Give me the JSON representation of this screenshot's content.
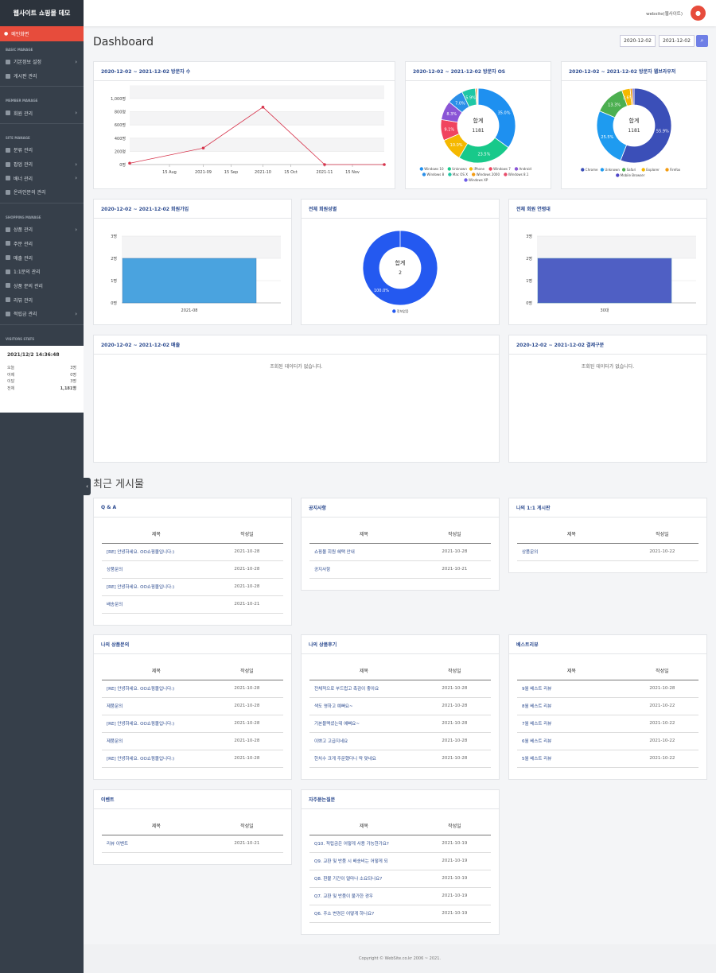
{
  "sidebar": {
    "title": "웹사이트 쇼핑몰 데모",
    "home": "메인화면",
    "sections": [
      {
        "name": "BASIC MANAGE",
        "items": [
          {
            "label": "기본정보 설정",
            "chevron": true
          },
          {
            "label": "게시판 관리",
            "chevron": false
          }
        ]
      },
      {
        "name": "MEMBER MANAGE",
        "items": [
          {
            "label": "회원 관리",
            "chevron": true
          }
        ]
      },
      {
        "name": "SITE MANAGE",
        "items": [
          {
            "label": "분류 관리",
            "chevron": false
          },
          {
            "label": "팝업 관리",
            "chevron": true
          },
          {
            "label": "배너 관리",
            "chevron": true
          },
          {
            "label": "온라인문의 관리",
            "chevron": false
          }
        ]
      },
      {
        "name": "SHOPPING MANAGE",
        "items": [
          {
            "label": "상품 관리",
            "chevron": true
          },
          {
            "label": "주문 관리",
            "chevron": false
          },
          {
            "label": "매출 관리",
            "chevron": false
          },
          {
            "label": "1:1문의 관리",
            "chevron": false
          },
          {
            "label": "상품 문의 관리",
            "chevron": false
          },
          {
            "label": "리뷰 관리",
            "chevron": false
          },
          {
            "label": "적립금 관리",
            "chevron": true
          }
        ]
      },
      {
        "name": "VISITORS STATS",
        "items": [
          {
            "label": "접속통계",
            "chevron": true
          }
        ]
      }
    ],
    "clock": "2021/12/2 14:36:48",
    "stats": [
      {
        "label": "오늘",
        "value": "3명"
      },
      {
        "label": "어제",
        "value": "0명"
      },
      {
        "label": "이달",
        "value": "3명"
      },
      {
        "label": "전체",
        "value": "1,181명"
      }
    ]
  },
  "topbar": {
    "user": "website(웹사이트)"
  },
  "dashboard": {
    "title": "Dashboard",
    "date_from": "2020-12-02",
    "date_to": "2021-12-02"
  },
  "cards": {
    "visitors": "2020-12-02 ~ 2021-12-02 방문자 수",
    "os": "2020-12-02 ~ 2021-12-02 방문자 OS",
    "browser": "2020-12-02 ~ 2021-12-02 방문자 웹브라우저",
    "signup": "2020-12-02 ~ 2021-12-02 회원가입",
    "gender": "전체 회원성별",
    "age": "전체 회원 연령대",
    "sales": "2020-12-02 ~ 2021-12-02 매출",
    "payment": "2020-12-02 ~ 2021-12-02 결제구분",
    "nodata": "조회된 데이터가 없습니다.",
    "total_label": "합계"
  },
  "chart_data": [
    {
      "type": "line",
      "title": "2020-12-02 ~ 2021-12-02 방문자 수",
      "x": [
        "2021-07-26",
        "2021-09-01",
        "2021-10-01",
        "2021-11-01",
        "2021-12-01"
      ],
      "y": [
        20,
        250,
        870,
        0,
        0
      ],
      "ticks_x": [
        "15 Aug",
        "2021-09",
        "15 Sep",
        "2021-10",
        "15 Oct",
        "2021-11",
        "15 Nov"
      ],
      "ticks_y": [
        "0명",
        "200명",
        "400명",
        "600명",
        "800명",
        "1,000명"
      ],
      "ylim": [
        0,
        1000
      ]
    },
    {
      "type": "pie",
      "title": "2020-12-02 ~ 2021-12-02 방문자 OS",
      "total": "1181",
      "labels": [
        "Windows 10",
        "Unknown",
        "iPhone",
        "Windows 7",
        "Android",
        "Windows 8",
        "Mac OS X",
        "Windows 2000",
        "Windows 8.1",
        "Windows XP"
      ],
      "values": [
        35.0,
        23.5,
        10.0,
        9.1,
        8.3,
        7.0,
        5.9,
        0.6,
        0.4,
        0.2
      ],
      "colors": [
        "#1e90f0",
        "#18c98a",
        "#f5b800",
        "#f0445f",
        "#8a55d6",
        "#2b8fe8",
        "#1fc7a5",
        "#f39c12",
        "#e84c6a",
        "#6c5ce7"
      ]
    },
    {
      "type": "pie",
      "title": "2020-12-02 ~ 2021-12-02 방문자 웹브라우저",
      "total": "1181",
      "labels": [
        "Chrome",
        "Unknown",
        "Safari",
        "Explorer",
        "Firefox",
        "Mobile Browser"
      ],
      "values": [
        55.9,
        25.5,
        13.3,
        3.6,
        1.0,
        0.7
      ],
      "colors": [
        "#3b4fb8",
        "#1e9bf0",
        "#4caf50",
        "#f5b800",
        "#f39c12",
        "#4f46c8"
      ]
    },
    {
      "type": "bar",
      "title": "2020-12-02 ~ 2021-12-02 회원가입",
      "categories": [
        "2021-08"
      ],
      "values": [
        2
      ],
      "ticks_y": [
        "0명",
        "1명",
        "2명",
        "3명"
      ],
      "ylim": [
        0,
        3
      ],
      "color": "#4aa3df"
    },
    {
      "type": "pie",
      "title": "전체 회원성별",
      "total": "2",
      "labels": [
        "정보없음"
      ],
      "values": [
        100.0
      ],
      "colors": [
        "#2459f0"
      ]
    },
    {
      "type": "bar",
      "title": "전체 회원 연령대",
      "categories": [
        "30대"
      ],
      "values": [
        2
      ],
      "ticks_y": [
        "0명",
        "1명",
        "2명",
        "3명"
      ],
      "ylim": [
        0,
        3
      ],
      "color": "#4f5fc4"
    }
  ],
  "recent_title": "최근 게시물",
  "boards": {
    "qna": {
      "title": "Q & A",
      "col_title": "제목",
      "col_date": "작성일",
      "rows": [
        {
          "t": "[RE] 안녕하세요. OO쇼핑몰입니다:)",
          "d": "2021-10-28"
        },
        {
          "t": "상품문의",
          "d": "2021-10-28"
        },
        {
          "t": "[RE] 안녕하세요. OO쇼핑몰입니다:)",
          "d": "2021-10-28"
        },
        {
          "t": "배송문의",
          "d": "2021-10-21"
        }
      ]
    },
    "notice": {
      "title": "공지사항",
      "col_title": "제목",
      "col_date": "작성일",
      "rows": [
        {
          "t": "쇼핑몰 회원 혜택 안내",
          "d": "2021-10-28"
        },
        {
          "t": "공지사항",
          "d": "2021-10-21"
        }
      ]
    },
    "myqa": {
      "title": "나의 1:1 게시판",
      "col_title": "제목",
      "col_date": "작성일",
      "rows": [
        {
          "t": "상품문의",
          "d": "2021-10-22"
        }
      ]
    },
    "myproduct": {
      "title": "나의 상품문의",
      "col_title": "제목",
      "col_date": "작성일",
      "rows": [
        {
          "t": "[RE] 안녕하세요. OO쇼핑몰입니다:)",
          "d": "2021-10-28"
        },
        {
          "t": "제품문의",
          "d": "2021-10-28"
        },
        {
          "t": "[RE] 안녕하세요. OO쇼핑몰입니다:)",
          "d": "2021-10-28"
        },
        {
          "t": "제품문의",
          "d": "2021-10-28"
        },
        {
          "t": "[RE] 안녕하세요. OO쇼핑몰입니다:)",
          "d": "2021-10-28"
        }
      ]
    },
    "myreview": {
      "title": "나의 상품후기",
      "col_title": "제목",
      "col_date": "작성일",
      "rows": [
        {
          "t": "전체적으로 부드럽고 촉감이 좋아요",
          "d": "2021-10-28"
        },
        {
          "t": "색도 영하고 예뻐요~",
          "d": "2021-10-28"
        },
        {
          "t": "기본블랙셨는데 예뻐요~",
          "d": "2021-10-28"
        },
        {
          "t": "이쁘고 고급지네요",
          "d": "2021-10-28"
        },
        {
          "t": "한치수 크게 주문했더니 딱 맞네요",
          "d": "2021-10-28"
        }
      ]
    },
    "best": {
      "title": "베스트리뷰",
      "col_title": "제목",
      "col_date": "작성일",
      "rows": [
        {
          "t": "9월 베스트 리뷰",
          "d": "2021-10-28"
        },
        {
          "t": "8월 베스트 리뷰",
          "d": "2021-10-22"
        },
        {
          "t": "7월 베스트 리뷰",
          "d": "2021-10-22"
        },
        {
          "t": "6월 베스트 리뷰",
          "d": "2021-10-22"
        },
        {
          "t": "5월 베스트 리뷰",
          "d": "2021-10-22"
        }
      ]
    },
    "event": {
      "title": "이벤트",
      "col_title": "제목",
      "col_date": "작성일",
      "rows": [
        {
          "t": "리뷰 이벤트",
          "d": "2021-10-21"
        }
      ]
    },
    "faq": {
      "title": "자주묻는질문",
      "col_title": "제목",
      "col_date": "작성일",
      "rows": [
        {
          "t": "Q10. 적립금은 어떻게 사용 가능한가요?",
          "d": "2021-10-19"
        },
        {
          "t": "Q9. 교환 및 반품 시 배송비는 어떻게 되",
          "d": "2021-10-19"
        },
        {
          "t": "Q8. 환불 기간이 얼마나 소요되나요?",
          "d": "2021-10-19"
        },
        {
          "t": "Q7. 교환 및 반품이 불가한 경우",
          "d": "2021-10-19"
        },
        {
          "t": "Q6. 주소 변경은 어떻게 하나요?",
          "d": "2021-10-19"
        }
      ]
    }
  },
  "footer": "Copyright © WebSite.co.kr 2006 ~ 2021."
}
